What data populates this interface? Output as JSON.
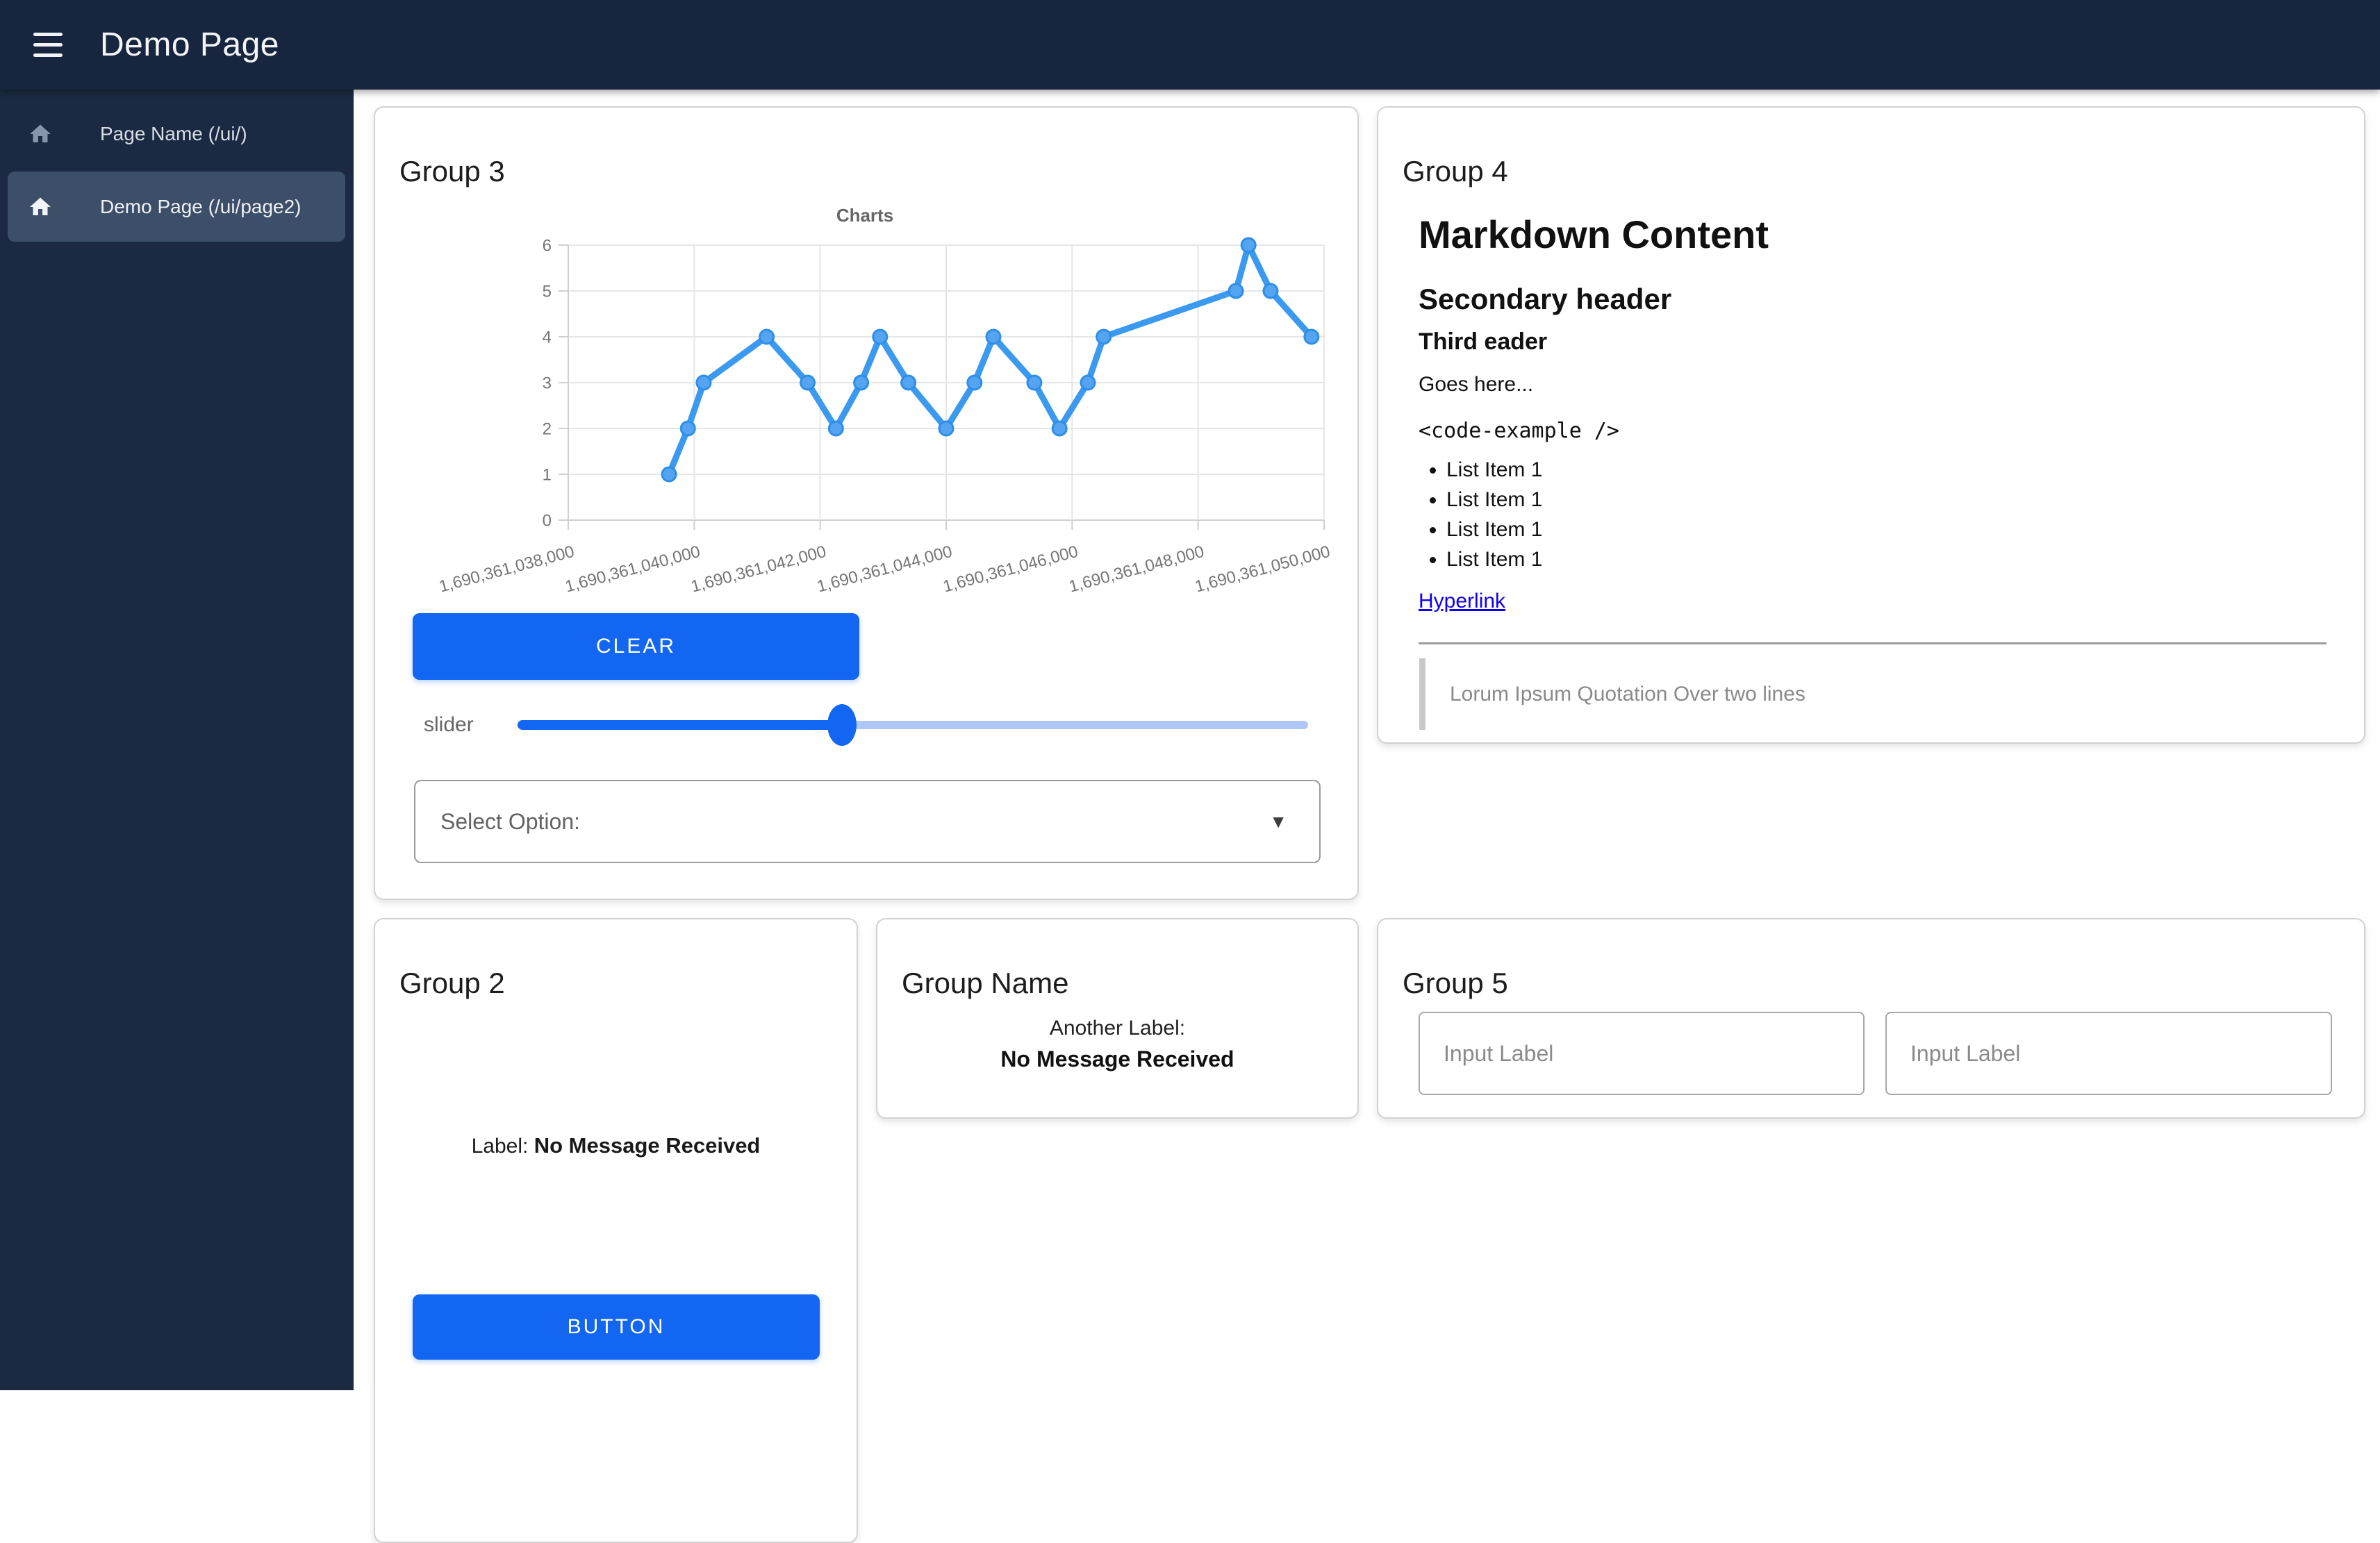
{
  "navbar": {
    "title": "Demo Page"
  },
  "sidebar": {
    "items": [
      {
        "label": "Page Name (/ui/)",
        "active": false
      },
      {
        "label": "Demo Page (/ui/page2)",
        "active": true
      }
    ]
  },
  "group3": {
    "title": "Group 3",
    "clear_button": "CLEAR",
    "slider": {
      "label": "slider",
      "value_percent": 41
    },
    "select": {
      "label": "Select Option:",
      "caret": "▼"
    }
  },
  "chart_data": {
    "type": "line",
    "title": "Charts",
    "x": [
      1690361039600,
      1690361039900,
      1690361040150,
      1690361041150,
      1690361041800,
      1690361042250,
      1690361042650,
      1690361042950,
      1690361043400,
      1690361044000,
      1690361044450,
      1690361044750,
      1690361045400,
      1690361045800,
      1690361046250,
      1690361046500,
      1690361048600,
      1690361048800,
      1690361049150,
      1690361049800
    ],
    "values": [
      1,
      2,
      3,
      4,
      3,
      2,
      3,
      4,
      3,
      2,
      3,
      4,
      3,
      2,
      3,
      4,
      5,
      6,
      5,
      4
    ],
    "xlim": [
      1690361038000,
      1690361050000
    ],
    "ylim": [
      0,
      6
    ],
    "y_ticks": [
      0,
      1,
      2,
      3,
      4,
      5,
      6
    ],
    "x_ticks": [
      1690361038000,
      1690361040000,
      1690361042000,
      1690361044000,
      1690361046000,
      1690361048000,
      1690361050000
    ],
    "x_tick_labels": [
      "1,690,361,038,000",
      "1,690,361,040,000",
      "1,690,361,042,000",
      "1,690,361,044,000",
      "1,690,361,046,000",
      "1,690,361,048,000",
      "1,690,361,050,000"
    ],
    "grid": true,
    "legend": false,
    "line_color": "#3B9AF0",
    "point_fill": "#54A4F1",
    "point_stroke": "#2E8EE8"
  },
  "group4": {
    "title": "Group 4",
    "heading1": "Markdown Content",
    "heading2": "Secondary header",
    "heading3": "Third eader",
    "paragraph": "Goes here...",
    "code": "<code-example />",
    "list_items": [
      "List Item 1",
      "List Item 1",
      "List Item 1",
      "List Item 1"
    ],
    "link": "Hyperlink",
    "quote": "Lorum Ipsum Quotation Over two lines"
  },
  "group2": {
    "title": "Group 2",
    "label_prefix": "Label:",
    "label_value": "No Message Received",
    "button": "BUTTON"
  },
  "group_name": {
    "title": "Group Name",
    "label": "Another Label:",
    "value": "No Message Received"
  },
  "group5": {
    "title": "Group 5",
    "input1_placeholder": "Input Label",
    "input2_placeholder": "Input Label"
  },
  "colors": {
    "navbar_bg": "#17263E",
    "sidebar_bg": "#1B2A42",
    "sidebar_active_bg": "#3C4E68",
    "accent": "#1266F1",
    "slider_track": "#AEC6F8",
    "link": "#1000EE",
    "chart_line": "#3B9AF0"
  }
}
